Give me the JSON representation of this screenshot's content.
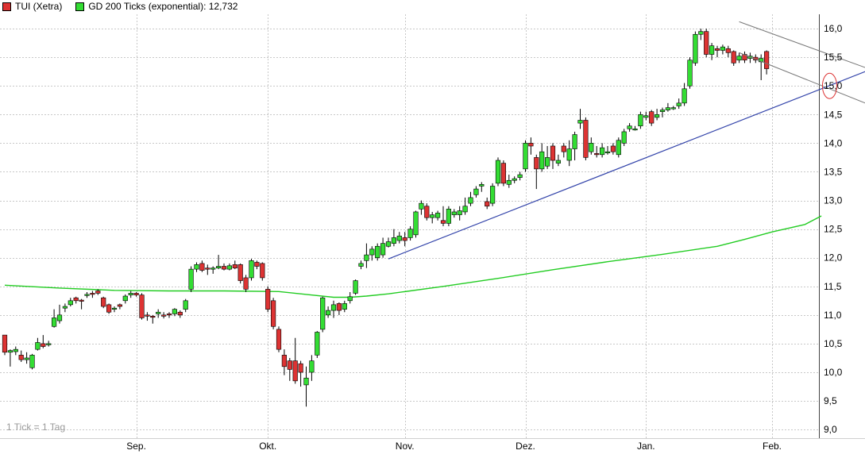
{
  "legend": {
    "series1": "TUI (Xetra)",
    "series2": "GD 200 Ticks (exponential): 12,732"
  },
  "colors": {
    "up": "#33dd33",
    "down": "#dd3333",
    "ma": "#22cc22",
    "trend": "#3344aa",
    "channel": "#777777",
    "grid": "#c8c8c8",
    "highlight": "#dd3333"
  },
  "note": "1 Tick = 1 Tag",
  "chart_data": {
    "type": "candlestick",
    "grid": true,
    "legend_position": "top-left",
    "y_range": [
      8.85,
      16.25
    ],
    "y_ticks": [
      9.0,
      9.5,
      10.0,
      10.5,
      11.0,
      11.5,
      12.0,
      12.5,
      13.0,
      13.5,
      14.0,
      14.5,
      15.0,
      15.5,
      16.0
    ],
    "y_tick_labels": [
      "9,0",
      "9,5",
      "10,0",
      "10,5",
      "11,0",
      "11,5",
      "12,0",
      "12,5",
      "13,0",
      "13,5",
      "14,0",
      "14,5",
      "15,0",
      "15,5",
      "16,0"
    ],
    "x_month_labels": [
      {
        "label": "Sep.",
        "index": 24
      },
      {
        "label": "Okt.",
        "index": 48
      },
      {
        "label": "Nov.",
        "index": 73
      },
      {
        "label": "Dez.",
        "index": 95
      },
      {
        "label": "Jan.",
        "index": 117
      },
      {
        "label": "Feb.",
        "index": 140
      }
    ],
    "candles": [
      [
        10.65,
        10.35,
        10.65,
        10.3
      ],
      [
        10.35,
        10.38,
        10.4,
        10.1
      ],
      [
        10.36,
        10.4,
        10.45,
        10.3
      ],
      [
        10.3,
        10.22,
        10.38,
        10.18
      ],
      [
        10.22,
        10.25,
        10.35,
        10.15
      ],
      [
        10.08,
        10.3,
        10.32,
        10.05
      ],
      [
        10.4,
        10.52,
        10.6,
        10.38
      ],
      [
        10.5,
        10.45,
        10.65,
        10.42
      ],
      [
        10.48,
        10.5,
        10.55,
        10.45
      ],
      [
        10.8,
        10.95,
        11.1,
        10.78
      ],
      [
        10.9,
        11.0,
        11.18,
        10.85
      ],
      [
        11.12,
        11.15,
        11.2,
        11.05
      ],
      [
        11.18,
        11.25,
        11.3,
        11.15
      ],
      [
        11.3,
        11.25,
        11.32,
        11.2
      ],
      [
        11.26,
        11.25,
        11.28,
        11.1
      ],
      [
        11.35,
        11.36,
        11.4,
        11.3
      ],
      [
        11.38,
        11.37,
        11.42,
        11.3
      ],
      [
        11.42,
        11.38,
        11.45,
        11.35
      ],
      [
        11.3,
        11.15,
        11.32,
        11.12
      ],
      [
        11.18,
        11.05,
        11.2,
        11.02
      ],
      [
        11.1,
        11.12,
        11.15,
        11.05
      ],
      [
        11.18,
        11.15,
        11.2,
        11.1
      ],
      [
        11.25,
        11.33,
        11.36,
        11.2
      ],
      [
        11.35,
        11.38,
        11.42,
        11.3
      ],
      [
        11.38,
        11.35,
        11.4,
        11.32
      ],
      [
        11.35,
        10.95,
        11.38,
        10.92
      ],
      [
        11.0,
        10.98,
        11.05,
        10.9
      ],
      [
        10.98,
        10.96,
        11.0,
        10.85
      ],
      [
        11.02,
        11.05,
        11.1,
        10.95
      ],
      [
        11.0,
        10.98,
        11.05,
        10.94
      ],
      [
        11.02,
        11.0,
        11.05,
        10.95
      ],
      [
        11.02,
        11.1,
        11.12,
        10.98
      ],
      [
        11.05,
        11.0,
        11.08,
        10.95
      ],
      [
        11.1,
        11.25,
        11.28,
        11.05
      ],
      [
        11.45,
        11.8,
        11.85,
        11.4
      ],
      [
        11.8,
        11.88,
        11.92,
        11.75
      ],
      [
        11.9,
        11.78,
        11.95,
        11.75
      ],
      [
        11.82,
        11.8,
        11.88,
        11.7
      ],
      [
        11.8,
        11.82,
        11.85,
        11.72
      ],
      [
        11.82,
        11.85,
        12.05,
        11.8
      ],
      [
        11.85,
        11.8,
        11.9,
        11.78
      ],
      [
        11.8,
        11.86,
        11.9,
        11.78
      ],
      [
        11.88,
        11.82,
        11.95,
        11.8
      ],
      [
        11.88,
        11.6,
        11.9,
        11.55
      ],
      [
        11.65,
        11.45,
        11.7,
        11.4
      ],
      [
        11.65,
        11.95,
        11.98,
        11.6
      ],
      [
        11.92,
        11.85,
        11.95,
        11.8
      ],
      [
        11.9,
        11.65,
        11.92,
        11.6
      ],
      [
        11.45,
        11.1,
        11.5,
        11.05
      ],
      [
        11.25,
        10.8,
        11.3,
        10.75
      ],
      [
        10.75,
        10.4,
        10.8,
        10.35
      ],
      [
        10.3,
        10.1,
        10.4,
        9.95
      ],
      [
        10.2,
        10.05,
        10.25,
        9.85
      ],
      [
        10.2,
        9.85,
        10.6,
        9.8
      ],
      [
        10.15,
        10.0,
        10.2,
        9.75
      ],
      [
        9.78,
        9.9,
        10.1,
        9.4
      ],
      [
        10.0,
        10.2,
        10.3,
        9.85
      ],
      [
        10.3,
        10.7,
        10.72,
        10.25
      ],
      [
        10.75,
        11.3,
        11.32,
        10.7
      ],
      [
        11.0,
        11.08,
        11.15,
        10.95
      ],
      [
        11.08,
        11.18,
        11.25,
        10.95
      ],
      [
        11.2,
        11.08,
        11.22,
        11.0
      ],
      [
        11.1,
        11.2,
        11.25,
        11.05
      ],
      [
        11.25,
        11.32,
        11.4,
        11.2
      ],
      [
        11.38,
        11.6,
        11.62,
        11.35
      ],
      [
        11.85,
        11.9,
        11.95,
        11.8
      ],
      [
        11.95,
        12.05,
        12.25,
        11.82
      ],
      [
        12.05,
        12.15,
        12.2,
        11.95
      ],
      [
        12.0,
        12.2,
        12.25,
        11.95
      ],
      [
        12.05,
        12.25,
        12.35,
        12.0
      ],
      [
        12.2,
        12.28,
        12.35,
        12.18
      ],
      [
        12.25,
        12.35,
        12.5,
        12.2
      ],
      [
        12.3,
        12.38,
        12.45,
        12.25
      ],
      [
        12.35,
        12.3,
        12.45,
        12.2
      ],
      [
        12.35,
        12.5,
        12.55,
        12.3
      ],
      [
        12.4,
        12.8,
        12.82,
        12.35
      ],
      [
        12.85,
        12.95,
        13.0,
        12.75
      ],
      [
        12.9,
        12.7,
        12.95,
        12.65
      ],
      [
        12.7,
        12.75,
        12.8,
        12.6
      ],
      [
        12.7,
        12.78,
        12.82,
        12.65
      ],
      [
        12.65,
        12.6,
        12.9,
        12.55
      ],
      [
        12.6,
        12.85,
        12.9,
        12.55
      ],
      [
        12.75,
        12.8,
        12.85,
        12.7
      ],
      [
        12.75,
        12.82,
        12.9,
        12.65
      ],
      [
        12.8,
        12.9,
        13.05,
        12.75
      ],
      [
        12.95,
        13.05,
        13.15,
        12.9
      ],
      [
        13.1,
        13.2,
        13.25,
        13.05
      ],
      [
        13.25,
        13.28,
        13.32,
        13.15
      ],
      [
        12.98,
        12.9,
        13.05,
        12.85
      ],
      [
        12.95,
        13.25,
        13.3,
        12.9
      ],
      [
        13.3,
        13.7,
        13.75,
        13.25
      ],
      [
        13.65,
        13.3,
        13.7,
        13.25
      ],
      [
        13.28,
        13.35,
        13.45,
        13.22
      ],
      [
        13.35,
        13.38,
        13.42,
        13.3
      ],
      [
        13.4,
        13.45,
        13.5,
        13.35
      ],
      [
        13.55,
        14.0,
        14.05,
        13.5
      ],
      [
        14.0,
        13.95,
        14.1,
        13.8
      ],
      [
        13.75,
        13.55,
        13.8,
        13.2
      ],
      [
        13.55,
        13.85,
        14.0,
        13.5
      ],
      [
        13.6,
        13.75,
        13.95,
        13.55
      ],
      [
        13.95,
        13.7,
        14.0,
        13.55
      ],
      [
        13.65,
        13.7,
        13.8,
        13.6
      ],
      [
        13.95,
        13.85,
        14.0,
        13.75
      ],
      [
        13.7,
        13.9,
        14.05,
        13.6
      ],
      [
        13.9,
        14.15,
        14.2,
        13.7
      ],
      [
        14.35,
        14.4,
        14.6,
        14.25
      ],
      [
        14.4,
        13.75,
        14.45,
        13.7
      ],
      [
        13.85,
        14.0,
        14.1,
        13.8
      ],
      [
        13.82,
        13.8,
        13.95,
        13.75
      ],
      [
        13.8,
        13.92,
        14.0,
        13.75
      ],
      [
        13.85,
        13.85,
        13.95,
        13.8
      ],
      [
        13.95,
        13.85,
        14.0,
        13.8
      ],
      [
        13.8,
        14.05,
        14.1,
        13.75
      ],
      [
        14.0,
        14.2,
        14.25,
        13.95
      ],
      [
        14.25,
        14.3,
        14.35,
        14.2
      ],
      [
        14.25,
        14.25,
        14.3,
        14.22
      ],
      [
        14.3,
        14.5,
        14.55,
        14.25
      ],
      [
        14.45,
        14.48,
        14.55,
        14.4
      ],
      [
        14.55,
        14.35,
        14.58,
        14.3
      ],
      [
        14.45,
        14.5,
        14.6,
        14.4
      ],
      [
        14.55,
        14.58,
        14.62,
        14.45
      ],
      [
        14.58,
        14.62,
        14.7,
        14.55
      ],
      [
        14.62,
        14.62,
        14.65,
        14.58
      ],
      [
        14.65,
        14.7,
        14.78,
        14.6
      ],
      [
        14.7,
        14.95,
        15.05,
        14.65
      ],
      [
        15.0,
        15.45,
        15.5,
        14.95
      ],
      [
        15.4,
        15.9,
        15.95,
        15.35
      ],
      [
        15.9,
        15.95,
        16.0,
        15.8
      ],
      [
        15.95,
        15.55,
        16.0,
        15.5
      ],
      [
        15.55,
        15.7,
        15.75,
        15.45
      ],
      [
        15.65,
        15.62,
        15.7,
        15.5
      ],
      [
        15.62,
        15.68,
        15.72,
        15.55
      ],
      [
        15.65,
        15.58,
        15.7,
        15.5
      ],
      [
        15.6,
        15.4,
        15.62,
        15.35
      ],
      [
        15.45,
        15.52,
        15.58,
        15.4
      ],
      [
        15.55,
        15.45,
        15.6,
        15.4
      ],
      [
        15.48,
        15.52,
        15.58,
        15.4
      ],
      [
        15.5,
        15.45,
        15.55,
        15.4
      ],
      [
        15.42,
        15.48,
        15.55,
        15.1
      ],
      [
        15.6,
        15.3,
        15.62,
        15.2
      ]
    ],
    "moving_average": {
      "name": "GD 200 Ticks (exponential)",
      "points": [
        [
          0,
          11.52
        ],
        [
          10,
          11.47
        ],
        [
          20,
          11.43
        ],
        [
          30,
          11.42
        ],
        [
          40,
          11.42
        ],
        [
          50,
          11.41
        ],
        [
          55,
          11.36
        ],
        [
          60,
          11.31
        ],
        [
          63,
          11.31
        ],
        [
          66,
          11.33
        ],
        [
          70,
          11.37
        ],
        [
          80,
          11.5
        ],
        [
          90,
          11.64
        ],
        [
          100,
          11.79
        ],
        [
          110,
          11.93
        ],
        [
          120,
          12.06
        ],
        [
          130,
          12.2
        ],
        [
          135,
          12.32
        ],
        [
          140,
          12.45
        ],
        [
          146,
          12.58
        ],
        [
          149,
          12.73
        ]
      ]
    },
    "trend_line": {
      "from": [
        70,
        11.98
      ],
      "to": [
        157,
        15.25
      ]
    },
    "channel_upper": {
      "from": [
        134,
        16.12
      ],
      "to": [
        157,
        15.32
      ]
    },
    "channel_lower": {
      "from": [
        134,
        15.58
      ],
      "to": [
        157,
        14.7
      ]
    },
    "highlight_ellipse": {
      "index": 150.5,
      "value": 15.0
    }
  }
}
